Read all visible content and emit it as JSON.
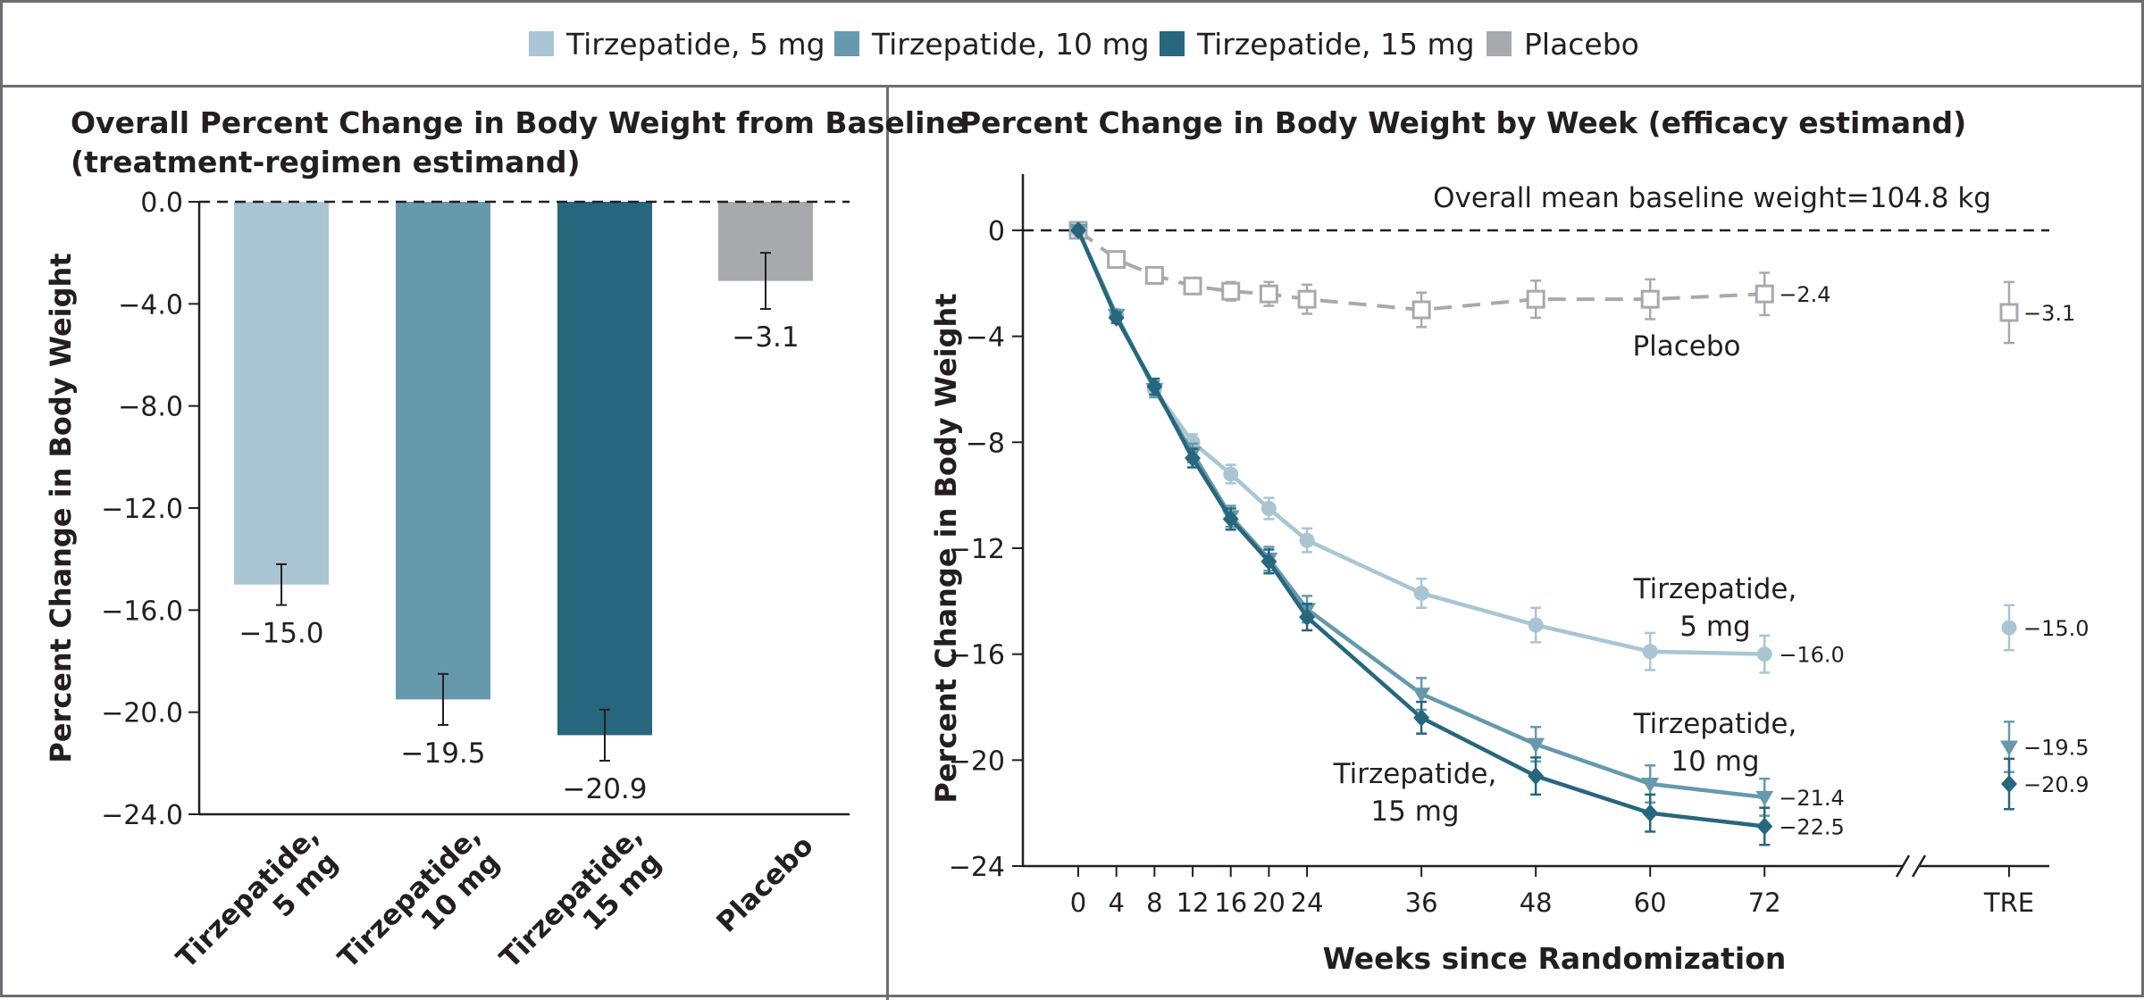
{
  "legend": [
    {
      "label": "Tirzepatide, 5 mg",
      "color": "#a9c5d3"
    },
    {
      "label": "Tirzepatide, 10 mg",
      "color": "#6699ab"
    },
    {
      "label": "Tirzepatide, 15 mg",
      "color": "#27677d"
    },
    {
      "label": "Placebo",
      "color": "#a7a9ac"
    }
  ],
  "chart_data": [
    {
      "type": "bar",
      "title_line1": "Overall Percent Change in Body Weight from Baseline",
      "title_line2": "(treatment-regimen estimand)",
      "ylabel": "Percent Change in Body Weight",
      "ylim": [
        -24.0,
        0.0
      ],
      "yticks": [
        "0.0",
        "−4.0",
        "−8.0",
        "−12.0",
        "−16.0",
        "−20.0",
        "−24.0"
      ],
      "categories": [
        {
          "line1": "Tirzepatide,",
          "line2": "5 mg"
        },
        {
          "line1": "Tirzepatide,",
          "line2": "10 mg"
        },
        {
          "line1": "Tirzepatide,",
          "line2": "15 mg"
        },
        {
          "line1": "Placebo",
          "line2": ""
        }
      ],
      "values": [
        -15.0,
        -19.5,
        -20.9,
        -3.1
      ],
      "value_labels": [
        "−15.0",
        "−19.5",
        "−20.9",
        "−3.1"
      ],
      "error_low": [
        -15.8,
        -20.5,
        -21.9,
        -4.2
      ],
      "error_high": [
        -14.2,
        -18.5,
        -19.9,
        -2.0
      ],
      "colors": [
        "#a9c5d3",
        "#6699ab",
        "#27677d",
        "#a7a9ac"
      ]
    },
    {
      "type": "line",
      "title": "Percent Change in Body Weight by Week (efficacy estimand)",
      "xlabel": "Weeks since Randomization",
      "ylabel": "Percent Change in Body Weight",
      "annotation": "Overall mean baseline weight=104.8 kg",
      "x": [
        0,
        4,
        8,
        12,
        16,
        20,
        24,
        36,
        48,
        60,
        72
      ],
      "xticks": [
        "0",
        "4",
        "8",
        "12",
        "16",
        "20",
        "24",
        "36",
        "48",
        "60",
        "72"
      ],
      "tre_label": "TRE",
      "ylim": [
        -24,
        0
      ],
      "yticks": [
        "0",
        "−4",
        "−8",
        "−12",
        "−16",
        "−20",
        "−24"
      ],
      "series": [
        {
          "name": "Placebo",
          "name_lines": [
            "Placebo"
          ],
          "color": "#a7a9ac",
          "marker": "open-square",
          "dashed": true,
          "values": [
            0,
            -1.1,
            -1.7,
            -2.1,
            -2.3,
            -2.4,
            -2.6,
            -3.0,
            -2.6,
            -2.6,
            -2.4
          ],
          "errors": [
            0,
            0.25,
            0.3,
            0.3,
            0.35,
            0.45,
            0.55,
            0.65,
            0.7,
            0.75,
            0.8
          ],
          "end_label": "−2.4",
          "tre_value": -3.1,
          "tre_error": 1.15,
          "tre_label": "−3.1"
        },
        {
          "name": "Tirzepatide, 5 mg",
          "name_lines": [
            "Tirzepatide,",
            "5 mg"
          ],
          "color": "#a9c5d3",
          "marker": "circle",
          "dashed": false,
          "values": [
            0,
            -3.2,
            -6.0,
            -8.0,
            -9.2,
            -10.5,
            -11.7,
            -13.7,
            -14.9,
            -15.9,
            -16.0
          ],
          "errors": [
            0,
            0.2,
            0.3,
            0.3,
            0.35,
            0.4,
            0.45,
            0.55,
            0.65,
            0.7,
            0.7
          ],
          "end_label": "−16.0",
          "tre_value": -15.0,
          "tre_error": 0.85,
          "tre_label": "−15.0"
        },
        {
          "name": "Tirzepatide, 10 mg",
          "name_lines": [
            "Tirzepatide,",
            "10 mg"
          ],
          "color": "#6699ab",
          "marker": "triangle-down",
          "dashed": false,
          "values": [
            0,
            -3.2,
            -6.0,
            -8.4,
            -10.8,
            -12.4,
            -14.3,
            -17.5,
            -19.4,
            -20.9,
            -21.4
          ],
          "errors": [
            0,
            0.2,
            0.3,
            0.35,
            0.4,
            0.45,
            0.5,
            0.6,
            0.65,
            0.7,
            0.7
          ],
          "end_label": "−21.4",
          "tre_value": -19.5,
          "tre_error": 0.95,
          "tre_label": "−19.5"
        },
        {
          "name": "Tirzepatide, 15 mg",
          "name_lines": [
            "Tirzepatide,",
            "15 mg"
          ],
          "color": "#27677d",
          "marker": "diamond",
          "dashed": false,
          "values": [
            0,
            -3.3,
            -5.9,
            -8.6,
            -10.9,
            -12.5,
            -14.6,
            -18.4,
            -20.6,
            -22.0,
            -22.5
          ],
          "errors": [
            0,
            0.2,
            0.3,
            0.35,
            0.4,
            0.45,
            0.5,
            0.6,
            0.7,
            0.7,
            0.7
          ],
          "end_label": "−22.5",
          "tre_value": -20.9,
          "tre_error": 0.95,
          "tre_label": "−20.9"
        }
      ]
    }
  ]
}
